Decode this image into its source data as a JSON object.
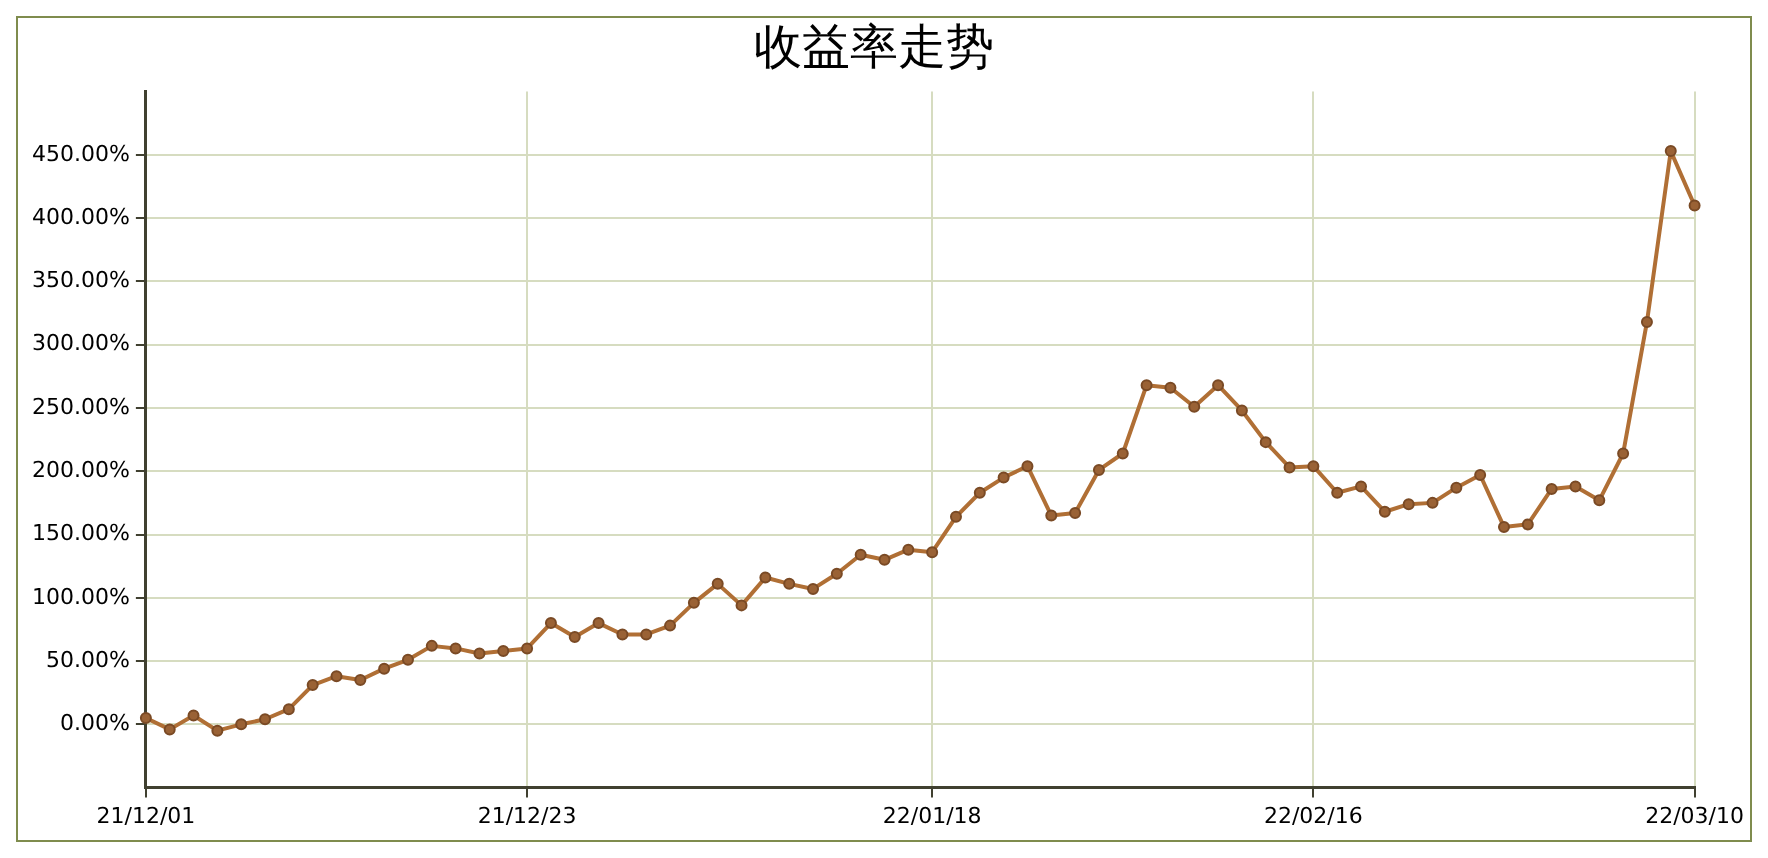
{
  "chart_data": {
    "type": "line",
    "title": "收益率走势",
    "categories": [
      "21/12/01",
      null,
      null,
      null,
      null,
      null,
      null,
      null,
      null,
      null,
      null,
      null,
      null,
      null,
      null,
      null,
      "21/12/23",
      null,
      null,
      null,
      null,
      null,
      null,
      null,
      null,
      null,
      null,
      null,
      null,
      null,
      null,
      null,
      null,
      "22/01/18",
      null,
      null,
      null,
      null,
      null,
      null,
      null,
      null,
      null,
      null,
      null,
      null,
      null,
      null,
      null,
      "22/02/16",
      null,
      null,
      null,
      null,
      null,
      null,
      null,
      null,
      null,
      null,
      null,
      null,
      null,
      null,
      null,
      "22/03/10"
    ],
    "series": [
      {
        "color": "#b06f35",
        "values": [
          5,
          -4,
          7,
          -5,
          0,
          4,
          12,
          31,
          38,
          35,
          44,
          51,
          62,
          60,
          56,
          58,
          60,
          80,
          69,
          80,
          71,
          71,
          78,
          96,
          111,
          94,
          116,
          111,
          107,
          119,
          134,
          130,
          138,
          136,
          164,
          183,
          195,
          204,
          165,
          167,
          201,
          214,
          268,
          266,
          251,
          268,
          248,
          223,
          203,
          204,
          183,
          188,
          168,
          174,
          175,
          187,
          197,
          156,
          158,
          186,
          188,
          177,
          214,
          318,
          453,
          410
        ]
      }
    ],
    "ylim": [
      -50,
      500
    ],
    "yticks": [
      {
        "value": 0,
        "label": "0.00%"
      },
      {
        "value": 50,
        "label": "50.00%"
      },
      {
        "value": 100,
        "label": "100.00%"
      },
      {
        "value": 150,
        "label": "150.00%"
      },
      {
        "value": 200,
        "label": "200.00%"
      },
      {
        "value": 250,
        "label": "250.00%"
      },
      {
        "value": 300,
        "label": "300.00%"
      },
      {
        "value": 350,
        "label": "350.00%"
      },
      {
        "value": 400,
        "label": "400.00%"
      },
      {
        "value": 450,
        "label": "450.00%"
      }
    ],
    "grid": true,
    "legend": false,
    "marker": "circle",
    "line_style": "solid"
  }
}
